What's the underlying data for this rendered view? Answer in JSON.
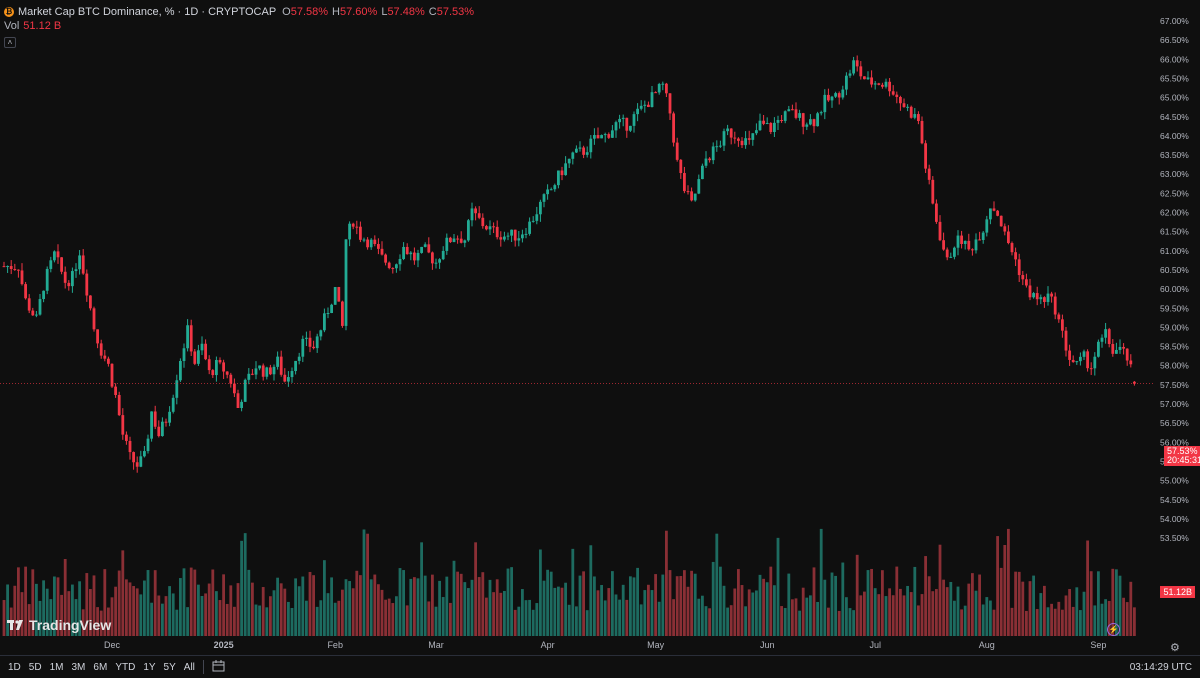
{
  "legend": {
    "coin_icon": "bitcoin-icon",
    "title": "Market Cap BTC Dominance, % · 1D · CRYPTOCAP",
    "o_label": "O",
    "o_value": "57.58%",
    "h_label": "H",
    "h_value": "57.60%",
    "l_label": "L",
    "l_value": "57.48%",
    "c_label": "C",
    "c_value": "57.53%",
    "vol_label": "Vol",
    "vol_value": "51.12 B"
  },
  "price_tag": {
    "value": "57.53%",
    "countdown": "20:45:31"
  },
  "volume_tag": "51.12B",
  "brand": "TradingView",
  "toolbar": {
    "timeframes": [
      "1D",
      "5D",
      "1M",
      "3M",
      "6M",
      "YTD",
      "1Y",
      "5Y",
      "All"
    ],
    "clock": "03:14:29 UTC"
  },
  "colors": {
    "up": "#22ab94",
    "down": "#f23645",
    "background": "#0f0f0f",
    "up_volume": "#1d6b60",
    "down_volume": "#8a2f35"
  },
  "chart_data": {
    "type": "candlestick",
    "title": "Market Cap BTC Dominance, %",
    "interval": "1D",
    "symbol": "CRYPTOCAP",
    "ylim": [
      53.5,
      67.0
    ],
    "y_ticks": [
      "53.50%",
      "54.00%",
      "54.50%",
      "55.00%",
      "55.50%",
      "56.00%",
      "56.50%",
      "57.00%",
      "57.50%",
      "58.00%",
      "58.50%",
      "59.00%",
      "59.50%",
      "60.00%",
      "60.50%",
      "61.00%",
      "61.50%",
      "62.00%",
      "62.50%",
      "63.00%",
      "63.50%",
      "64.00%",
      "64.50%",
      "65.00%",
      "65.50%",
      "66.00%",
      "66.50%",
      "67.00%"
    ],
    "y_tick_values": [
      53.5,
      54.0,
      54.5,
      55.0,
      55.5,
      56.0,
      56.5,
      57.0,
      57.5,
      58.0,
      58.5,
      59.0,
      59.5,
      60.0,
      60.5,
      61.0,
      61.5,
      62.0,
      62.5,
      63.0,
      63.5,
      64.0,
      64.5,
      65.0,
      65.5,
      66.0,
      66.5,
      67.0
    ],
    "x_labels": [
      "Dec",
      "2025",
      "Feb",
      "Mar",
      "Apr",
      "May",
      "Jun",
      "Jul",
      "Aug",
      "Sep"
    ],
    "x_label_dates": [
      "2024-12-01",
      "2025-01-01",
      "2025-02-01",
      "2025-03-01",
      "2025-04-01",
      "2025-05-01",
      "2025-06-01",
      "2025-07-01",
      "2025-08-01",
      "2025-09-01"
    ],
    "start_date": "2024-11-01",
    "close_path": [
      [
        "2024-11-01",
        60.6
      ],
      [
        "2024-11-05",
        60.6
      ],
      [
        "2024-11-07",
        59.7
      ],
      [
        "2024-11-10",
        59.2
      ],
      [
        "2024-11-12",
        60.1
      ],
      [
        "2024-11-15",
        60.9
      ],
      [
        "2024-11-18",
        60.2
      ],
      [
        "2024-11-20",
        60.3
      ],
      [
        "2024-11-22",
        61.0
      ],
      [
        "2024-11-24",
        60.0
      ],
      [
        "2024-11-26",
        59.0
      ],
      [
        "2024-11-28",
        58.4
      ],
      [
        "2024-11-30",
        58.0
      ],
      [
        "2024-12-02",
        57.2
      ],
      [
        "2024-12-04",
        56.2
      ],
      [
        "2024-12-06",
        55.6
      ],
      [
        "2024-12-08",
        55.4
      ],
      [
        "2024-12-10",
        55.6
      ],
      [
        "2024-12-12",
        56.8
      ],
      [
        "2024-12-14",
        56.2
      ],
      [
        "2024-12-16",
        56.6
      ],
      [
        "2024-12-18",
        57.3
      ],
      [
        "2024-12-20",
        58.2
      ],
      [
        "2024-12-22",
        58.9
      ],
      [
        "2024-12-24",
        58.1
      ],
      [
        "2024-12-26",
        58.5
      ],
      [
        "2024-12-28",
        57.8
      ],
      [
        "2024-12-30",
        58.0
      ],
      [
        "2025-01-01",
        57.9
      ],
      [
        "2025-01-03",
        57.6
      ],
      [
        "2025-01-05",
        56.9
      ],
      [
        "2025-01-07",
        57.5
      ],
      [
        "2025-01-10",
        58.0
      ],
      [
        "2025-01-13",
        57.8
      ],
      [
        "2025-01-16",
        58.1
      ],
      [
        "2025-01-18",
        57.6
      ],
      [
        "2025-01-20",
        58.0
      ],
      [
        "2025-01-23",
        58.6
      ],
      [
        "2025-01-26",
        58.5
      ],
      [
        "2025-01-29",
        59.2
      ],
      [
        "2025-02-01",
        60.0
      ],
      [
        "2025-02-03",
        59.0
      ],
      [
        "2025-02-04",
        61.3
      ],
      [
        "2025-02-06",
        61.8
      ],
      [
        "2025-02-08",
        61.4
      ],
      [
        "2025-02-11",
        61.2
      ],
      [
        "2025-02-14",
        60.8
      ],
      [
        "2025-02-17",
        60.6
      ],
      [
        "2025-02-20",
        61.1
      ],
      [
        "2025-02-23",
        60.8
      ],
      [
        "2025-02-26",
        61.0
      ],
      [
        "2025-03-01",
        60.7
      ],
      [
        "2025-03-03",
        61.1
      ],
      [
        "2025-03-06",
        61.4
      ],
      [
        "2025-03-09",
        61.3
      ],
      [
        "2025-03-11",
        62.0
      ],
      [
        "2025-03-14",
        61.7
      ],
      [
        "2025-03-17",
        61.5
      ],
      [
        "2025-03-20",
        61.4
      ],
      [
        "2025-03-24",
        61.4
      ],
      [
        "2025-03-27",
        61.7
      ],
      [
        "2025-03-30",
        62.2
      ],
      [
        "2025-04-02",
        62.6
      ],
      [
        "2025-04-05",
        63.1
      ],
      [
        "2025-04-08",
        63.5
      ],
      [
        "2025-04-11",
        63.6
      ],
      [
        "2025-04-14",
        63.9
      ],
      [
        "2025-04-17",
        64.0
      ],
      [
        "2025-04-20",
        64.3
      ],
      [
        "2025-04-23",
        64.3
      ],
      [
        "2025-04-26",
        64.6
      ],
      [
        "2025-04-29",
        64.9
      ],
      [
        "2025-05-01",
        65.1
      ],
      [
        "2025-05-03",
        65.3
      ],
      [
        "2025-05-05",
        64.6
      ],
      [
        "2025-05-07",
        63.3
      ],
      [
        "2025-05-09",
        62.6
      ],
      [
        "2025-05-11",
        62.2
      ],
      [
        "2025-05-13",
        62.8
      ],
      [
        "2025-05-15",
        63.4
      ],
      [
        "2025-05-18",
        63.7
      ],
      [
        "2025-05-21",
        64.1
      ],
      [
        "2025-05-24",
        64.0
      ],
      [
        "2025-05-27",
        63.8
      ],
      [
        "2025-05-30",
        64.3
      ],
      [
        "2025-06-02",
        64.2
      ],
      [
        "2025-06-05",
        64.5
      ],
      [
        "2025-06-08",
        64.6
      ],
      [
        "2025-06-11",
        64.4
      ],
      [
        "2025-06-14",
        64.4
      ],
      [
        "2025-06-17",
        64.9
      ],
      [
        "2025-06-20",
        65.0
      ],
      [
        "2025-06-23",
        65.5
      ],
      [
        "2025-06-25",
        65.9
      ],
      [
        "2025-06-27",
        65.6
      ],
      [
        "2025-06-29",
        65.4
      ],
      [
        "2025-07-02",
        65.4
      ],
      [
        "2025-07-05",
        65.3
      ],
      [
        "2025-07-08",
        64.9
      ],
      [
        "2025-07-11",
        64.6
      ],
      [
        "2025-07-13",
        64.4
      ],
      [
        "2025-07-15",
        63.2
      ],
      [
        "2025-07-17",
        62.2
      ],
      [
        "2025-07-19",
        61.4
      ],
      [
        "2025-07-21",
        60.7
      ],
      [
        "2025-07-23",
        61.2
      ],
      [
        "2025-07-25",
        61.3
      ],
      [
        "2025-07-27",
        61.0
      ],
      [
        "2025-07-29",
        61.3
      ],
      [
        "2025-07-31",
        61.6
      ],
      [
        "2025-08-02",
        62.2
      ],
      [
        "2025-08-04",
        62.0
      ],
      [
        "2025-08-06",
        61.4
      ],
      [
        "2025-08-08",
        61.0
      ],
      [
        "2025-08-10",
        60.5
      ],
      [
        "2025-08-12",
        60.0
      ],
      [
        "2025-08-14",
        59.8
      ],
      [
        "2025-08-16",
        59.7
      ],
      [
        "2025-08-18",
        59.8
      ],
      [
        "2025-08-20",
        59.5
      ],
      [
        "2025-08-22",
        58.8
      ],
      [
        "2025-08-24",
        58.2
      ],
      [
        "2025-08-26",
        58.0
      ],
      [
        "2025-08-28",
        58.2
      ],
      [
        "2025-08-30",
        58.0
      ],
      [
        "2025-09-01",
        58.5
      ],
      [
        "2025-09-03",
        58.8
      ],
      [
        "2025-09-05",
        58.4
      ],
      [
        "2025-09-07",
        58.4
      ],
      [
        "2025-09-09",
        58.2
      ],
      [
        "2025-09-11",
        57.53
      ]
    ],
    "last_candle": {
      "date": "2025-09-11",
      "open": 57.58,
      "high": 57.6,
      "low": 57.48,
      "close": 57.53
    },
    "last_volume": "51.12B"
  }
}
